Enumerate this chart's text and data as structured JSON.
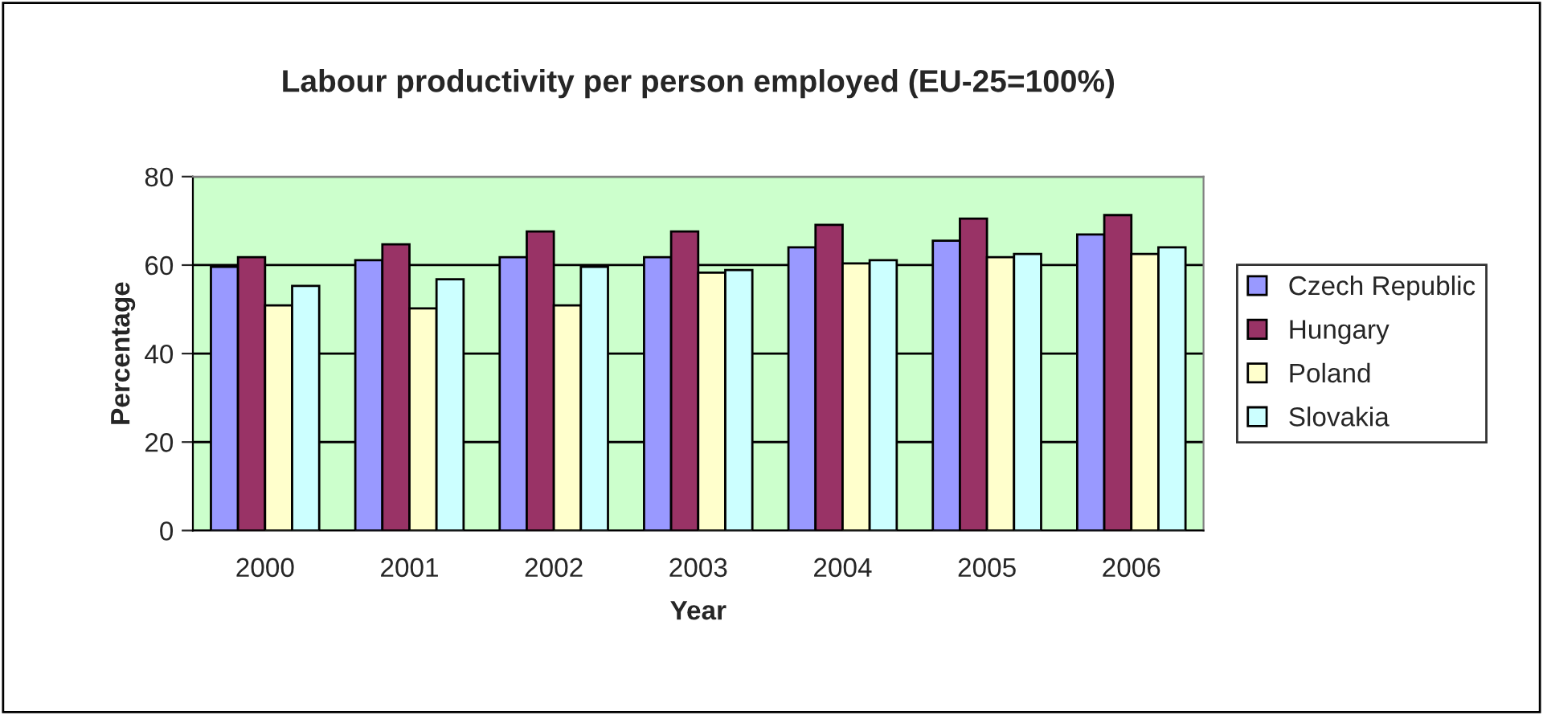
{
  "chart_data": {
    "type": "bar",
    "title": "Labour productivity per person employed (EU-25=100%)",
    "xlabel": "Year",
    "ylabel": "Percentage",
    "categories": [
      "2000",
      "2001",
      "2002",
      "2003",
      "2004",
      "2005",
      "2006"
    ],
    "series": [
      {
        "name": "Czech Republic",
        "color": "#9999ff",
        "values": [
          59.6,
          61.1,
          61.8,
          61.8,
          64.0,
          65.5,
          66.9
        ]
      },
      {
        "name": "Hungary",
        "color": "#993366",
        "values": [
          61.8,
          64.7,
          67.6,
          67.6,
          69.1,
          70.5,
          71.3
        ]
      },
      {
        "name": "Poland",
        "color": "#ffffcc",
        "values": [
          50.9,
          50.2,
          50.9,
          58.3,
          60.4,
          61.8,
          62.5
        ]
      },
      {
        "name": "Slovakia",
        "color": "#ccffff",
        "values": [
          55.3,
          56.8,
          59.6,
          58.9,
          61.1,
          62.5,
          64.0
        ]
      }
    ],
    "ylim": [
      0,
      80
    ],
    "yticks": [
      0,
      20,
      40,
      60,
      80
    ],
    "grid": "y",
    "legend": "right"
  }
}
